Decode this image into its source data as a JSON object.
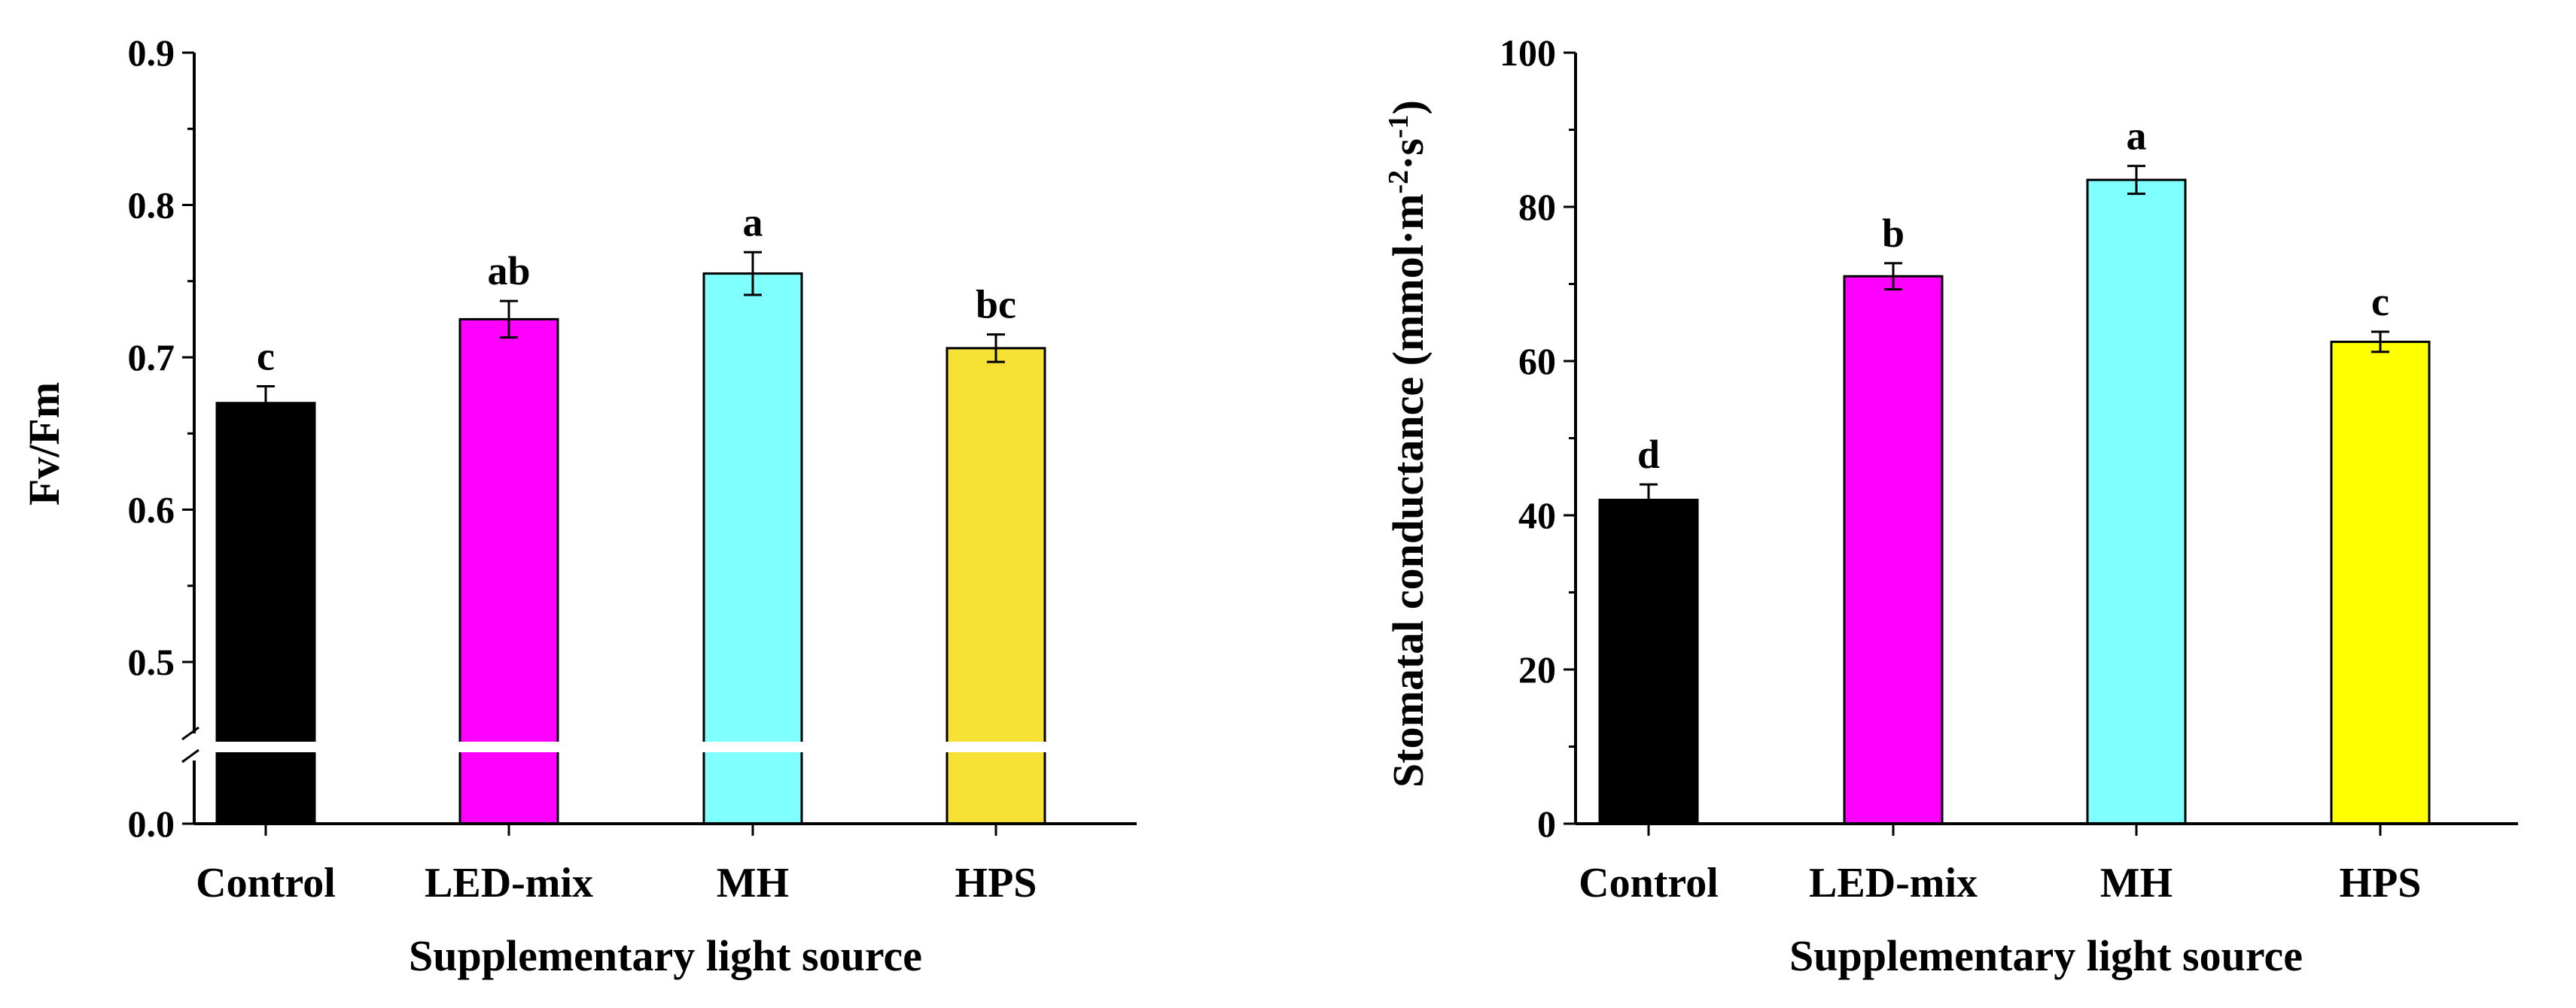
{
  "chart_data": [
    {
      "type": "bar",
      "title": "",
      "xlabel": "Supplementary light source",
      "ylabel": "Fv/Fm",
      "categories": [
        "Control",
        "LED-mix",
        "MH",
        "HPS"
      ],
      "values": [
        0.67,
        0.725,
        0.755,
        0.706
      ],
      "errors": [
        0.011,
        0.012,
        0.014,
        0.009
      ],
      "significance": [
        "c",
        "ab",
        "a",
        "bc"
      ],
      "colors": [
        "#000000",
        "#ff00ff",
        "#80ffff",
        "#f7e135"
      ],
      "ylim": [
        0.0,
        0.9
      ],
      "axis_break": [
        0.0,
        0.45
      ],
      "yticks": [
        0.0,
        0.5,
        0.6,
        0.7,
        0.8,
        0.9
      ],
      "ytick_labels": [
        "0.0",
        "0.5",
        "0.6",
        "0.7",
        "0.8",
        "0.9"
      ]
    },
    {
      "type": "bar",
      "title": "",
      "xlabel": "Supplementary light source",
      "ylabel": "Stomatal conductance (mmol·m",
      "ylabel_sup1": "-2",
      "ylabel_mid": "·s",
      "ylabel_sup2": "-1",
      "ylabel_end": ")",
      "categories": [
        "Control",
        "LED-mix",
        "MH",
        "HPS"
      ],
      "values": [
        42.0,
        71.0,
        83.5,
        62.5
      ],
      "errors": [
        2.0,
        1.7,
        1.8,
        1.3
      ],
      "significance": [
        "d",
        "b",
        "a",
        "c"
      ],
      "colors": [
        "#000000",
        "#ff00ff",
        "#80ffff",
        "#ffff00"
      ],
      "ylim": [
        0,
        100
      ],
      "yticks": [
        0,
        20,
        40,
        60,
        80,
        100
      ],
      "ytick_labels": [
        "0",
        "20",
        "40",
        "60",
        "80",
        "100"
      ]
    }
  ]
}
